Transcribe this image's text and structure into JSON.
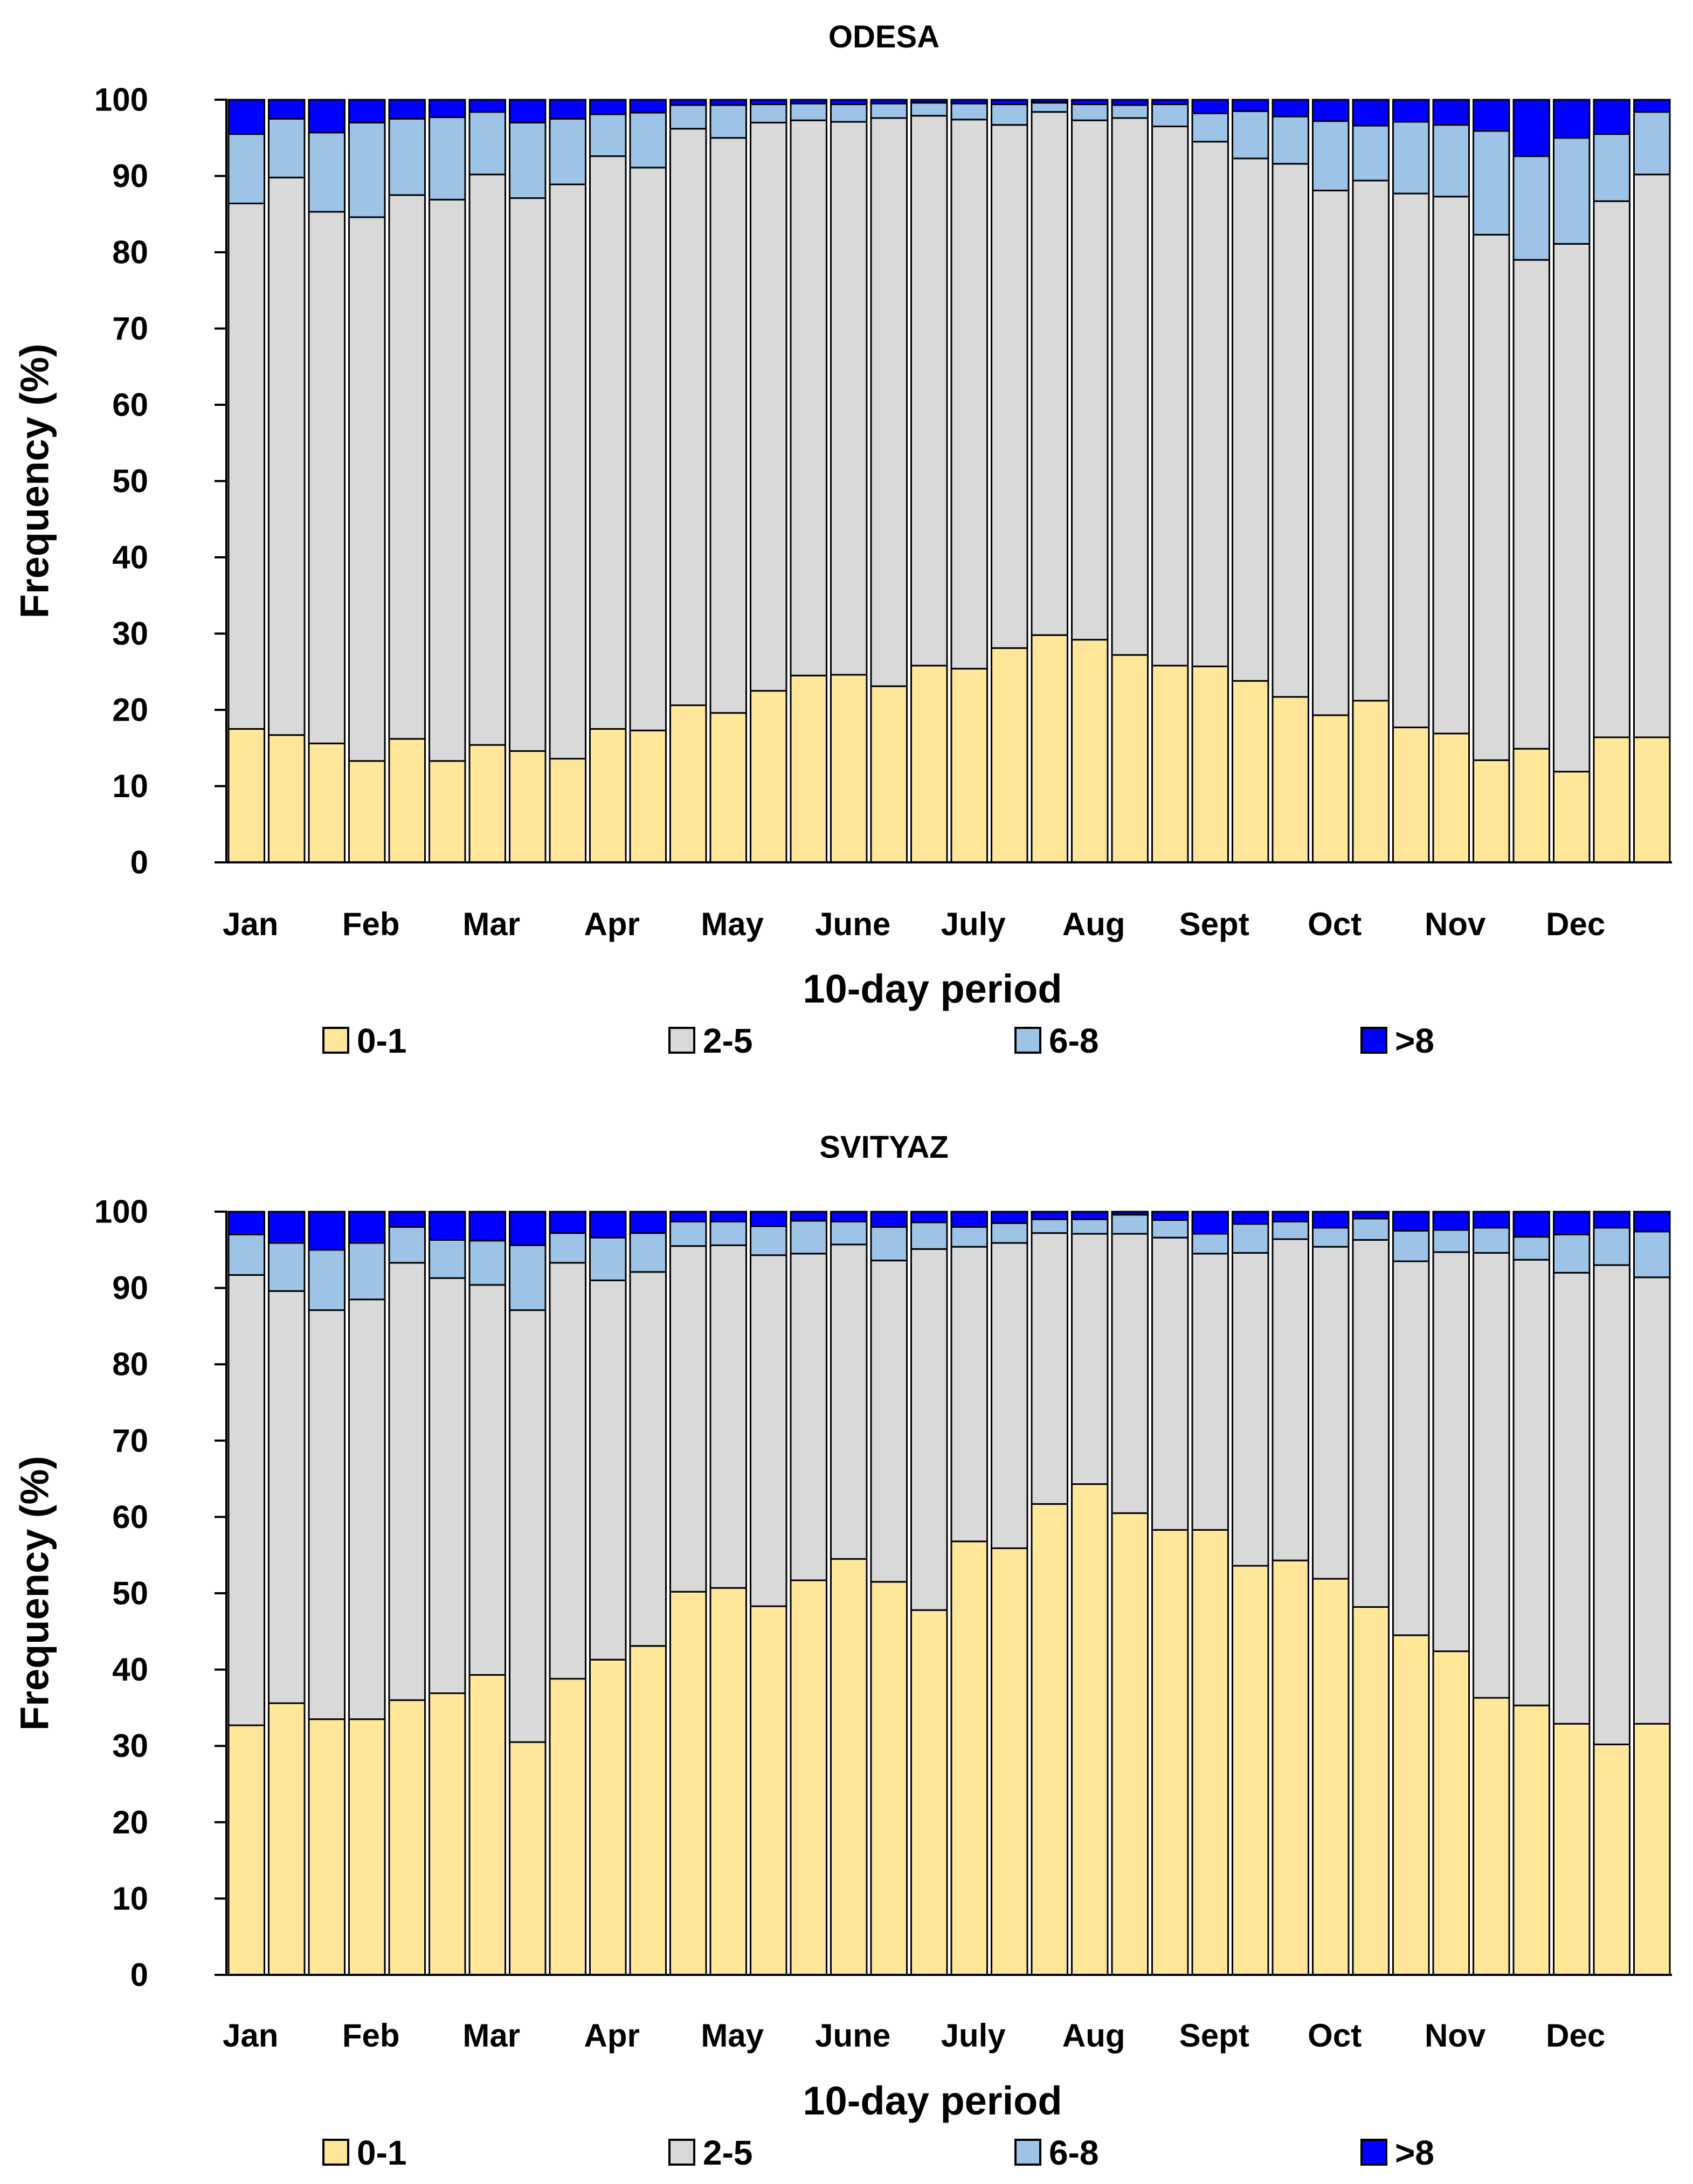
{
  "chart_data": [
    {
      "type": "bar",
      "stacked": true,
      "title": "ODESA",
      "xlabel": "10-day period",
      "ylabel": "Frequency (%)",
      "ylim": [
        0,
        100
      ],
      "yticks": [
        0,
        10,
        20,
        30,
        40,
        50,
        60,
        70,
        80,
        90,
        100
      ],
      "month_labels": [
        "Jan",
        "Feb",
        "Mar",
        "Apr",
        "May",
        "June",
        "July",
        "Aug",
        "Sept",
        "Oct",
        "Nov",
        "Dec"
      ],
      "bars_per_month": 3,
      "legend": [
        "0-1",
        "2-5",
        "6-8",
        ">8"
      ],
      "series": [
        {
          "name": "0-1",
          "color": "#FFE699",
          "values": [
            17.5,
            16.7,
            15.6,
            13.3,
            16.2,
            13.3,
            15.4,
            14.6,
            13.6,
            17.5,
            17.3,
            20.6,
            19.6,
            22.5,
            24.5,
            24.6,
            23.1,
            25.8,
            25.4,
            28.1,
            29.8,
            29.2,
            27.2,
            25.8,
            25.7,
            23.8,
            21.7,
            19.3,
            21.2,
            17.7,
            16.9,
            13.4,
            14.9,
            11.9,
            16.4,
            16.4
          ]
        },
        {
          "name": "2-5",
          "color": "#D9D9D9",
          "values": [
            68.9,
            73.1,
            69.7,
            71.3,
            71.3,
            73.6,
            74.8,
            72.5,
            75.3,
            75.1,
            73.8,
            75.6,
            75.4,
            74.5,
            72.8,
            72.5,
            74.5,
            72.1,
            72.0,
            68.6,
            68.6,
            68.1,
            70.4,
            70.7,
            68.8,
            68.5,
            69.9,
            68.8,
            68.2,
            70.0,
            70.4,
            68.9,
            64.1,
            69.2,
            70.3,
            73.8
          ]
        },
        {
          "name": "6-8",
          "color": "#9DC3E6",
          "values": [
            9.1,
            7.7,
            10.4,
            12.4,
            10.0,
            10.8,
            8.2,
            9.9,
            8.6,
            5.5,
            7.2,
            3.1,
            4.3,
            2.4,
            2.2,
            2.3,
            1.9,
            1.7,
            2.1,
            2.7,
            1.2,
            2.1,
            1.7,
            2.9,
            3.7,
            6.2,
            6.2,
            9.1,
            7.2,
            9.4,
            9.4,
            13.6,
            13.6,
            13.9,
            8.8,
            8.2
          ]
        },
        {
          "name": ">8",
          "color": "#0000FF",
          "values": [
            4.5,
            2.5,
            4.3,
            3.0,
            2.5,
            2.3,
            1.6,
            3.0,
            2.5,
            1.9,
            1.7,
            0.7,
            0.7,
            0.6,
            0.5,
            0.6,
            0.5,
            0.4,
            0.5,
            0.6,
            0.4,
            0.6,
            0.7,
            0.6,
            1.8,
            1.5,
            2.2,
            2.8,
            3.4,
            2.9,
            3.3,
            4.1,
            7.4,
            5.0,
            4.5,
            1.6
          ]
        }
      ]
    },
    {
      "type": "bar",
      "stacked": true,
      "title": "SVITYAZ",
      "xlabel": "10-day period",
      "ylabel": "Frequency (%)",
      "ylim": [
        0,
        100
      ],
      "yticks": [
        0,
        10,
        20,
        30,
        40,
        50,
        60,
        70,
        80,
        90,
        100
      ],
      "month_labels": [
        "Jan",
        "Feb",
        "Mar",
        "Apr",
        "May",
        "June",
        "July",
        "Aug",
        "Sept",
        "Oct",
        "Nov",
        "Dec"
      ],
      "bars_per_month": 3,
      "legend": [
        "0-1",
        "2-5",
        "6-8",
        ">8"
      ],
      "series": [
        {
          "name": "0-1",
          "color": "#FFE699",
          "values": [
            32.7,
            35.6,
            33.5,
            33.5,
            36.0,
            36.9,
            39.3,
            30.5,
            38.8,
            41.3,
            43.1,
            50.2,
            50.7,
            48.3,
            51.7,
            54.5,
            51.5,
            47.8,
            56.8,
            55.9,
            61.7,
            64.3,
            60.5,
            58.3,
            58.3,
            53.6,
            54.3,
            51.9,
            48.2,
            44.5,
            42.4,
            36.3,
            35.3,
            32.9,
            30.2,
            32.9
          ]
        },
        {
          "name": "2-5",
          "color": "#D9D9D9",
          "values": [
            59.0,
            54.0,
            53.6,
            55.0,
            57.3,
            54.4,
            51.1,
            56.6,
            54.5,
            49.7,
            49.0,
            45.3,
            44.9,
            46.0,
            42.8,
            41.2,
            42.1,
            47.3,
            38.6,
            40.0,
            35.5,
            32.8,
            36.6,
            38.3,
            36.2,
            41.0,
            42.1,
            43.5,
            48.1,
            49.0,
            52.3,
            58.3,
            58.4,
            59.1,
            62.8,
            58.5
          ]
        },
        {
          "name": "6-8",
          "color": "#9DC3E6",
          "values": [
            5.3,
            6.3,
            7.9,
            7.4,
            4.7,
            5.0,
            5.8,
            8.5,
            3.9,
            5.6,
            5.1,
            3.2,
            3.1,
            3.8,
            4.3,
            3.0,
            4.4,
            3.5,
            2.6,
            2.6,
            1.8,
            1.9,
            2.5,
            2.3,
            2.6,
            3.8,
            2.3,
            2.5,
            2.8,
            4.0,
            2.9,
            3.3,
            3.0,
            5.0,
            4.9,
            6.0
          ]
        },
        {
          "name": ">8",
          "color": "#0000FF",
          "values": [
            3.0,
            4.1,
            5.0,
            4.1,
            2.0,
            3.7,
            3.8,
            4.4,
            2.8,
            3.4,
            2.8,
            1.3,
            1.3,
            1.9,
            1.2,
            1.3,
            2.0,
            1.4,
            2.0,
            1.5,
            1.0,
            1.0,
            0.4,
            1.1,
            2.9,
            1.6,
            1.3,
            2.1,
            0.9,
            2.5,
            2.4,
            2.1,
            3.3,
            3.0,
            2.1,
            2.6
          ]
        }
      ]
    }
  ]
}
